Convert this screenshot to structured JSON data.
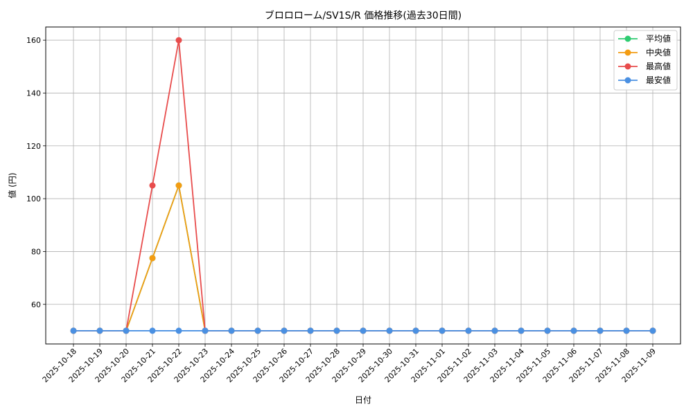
{
  "chart_data": {
    "type": "line",
    "title": "ブロロローム/SV1S/R 価格推移(過去30日間)",
    "xlabel": "日付",
    "ylabel": "値 (円)",
    "ylim": [
      45,
      165
    ],
    "yticks": [
      60,
      80,
      100,
      120,
      140,
      160
    ],
    "grid": true,
    "legend_position": "top-right",
    "categories": [
      "2025-10-18",
      "2025-10-19",
      "2025-10-20",
      "2025-10-21",
      "2025-10-22",
      "2025-10-23",
      "2025-10-24",
      "2025-10-25",
      "2025-10-26",
      "2025-10-27",
      "2025-10-28",
      "2025-10-29",
      "2025-10-30",
      "2025-10-31",
      "2025-11-01",
      "2025-11-02",
      "2025-11-03",
      "2025-11-04",
      "2025-11-05",
      "2025-11-06",
      "2025-11-07",
      "2025-11-08",
      "2025-11-09"
    ],
    "series": [
      {
        "name": "平均値",
        "color": "#2ecc71",
        "values": [
          50,
          50,
          50,
          77.5,
          105,
          50,
          50,
          50,
          50,
          50,
          50,
          50,
          50,
          50,
          50,
          50,
          50,
          50,
          50,
          50,
          50,
          50,
          50
        ]
      },
      {
        "name": "中央値",
        "color": "#f39c12",
        "values": [
          50,
          50,
          50,
          77.5,
          105,
          50,
          50,
          50,
          50,
          50,
          50,
          50,
          50,
          50,
          50,
          50,
          50,
          50,
          50,
          50,
          50,
          50,
          50
        ]
      },
      {
        "name": "最高値",
        "color": "#e84c4c",
        "values": [
          50,
          50,
          50,
          105,
          160,
          50,
          50,
          50,
          50,
          50,
          50,
          50,
          50,
          50,
          50,
          50,
          50,
          50,
          50,
          50,
          50,
          50,
          50
        ]
      },
      {
        "name": "最安値",
        "color": "#4a90e2",
        "values": [
          50,
          50,
          50,
          50,
          50,
          50,
          50,
          50,
          50,
          50,
          50,
          50,
          50,
          50,
          50,
          50,
          50,
          50,
          50,
          50,
          50,
          50,
          50
        ]
      }
    ]
  }
}
